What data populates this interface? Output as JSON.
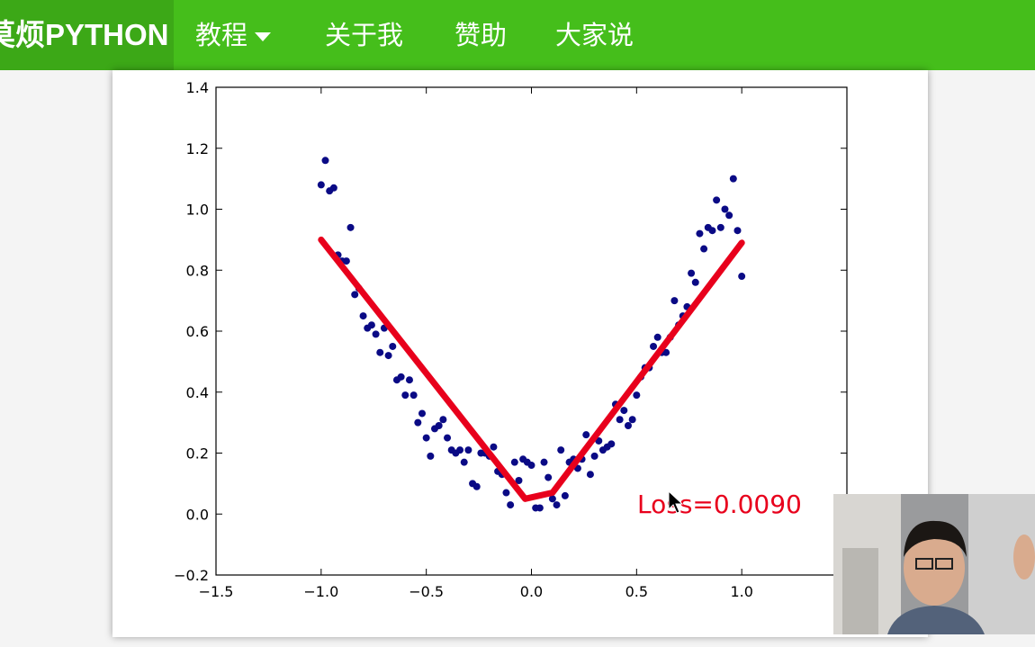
{
  "nav": {
    "brand": "莫烦PYTHON",
    "items": [
      {
        "label": "教程",
        "dropdown": true
      },
      {
        "label": "关于我",
        "dropdown": false
      },
      {
        "label": "赞助",
        "dropdown": false
      },
      {
        "label": "大家说",
        "dropdown": false
      }
    ]
  },
  "colors": {
    "nav_bg": "#45be1b",
    "brand_bg": "#3ca817",
    "points": "#0a0a85",
    "fit_line": "#e8001c",
    "loss_text": "#e8001c"
  },
  "icons": [
    "chevron-down-icon",
    "mouse-cursor-icon"
  ],
  "chart_data": {
    "type": "scatter",
    "title": "",
    "xlabel": "",
    "ylabel": "",
    "xlim": [
      -1.5,
      1.5
    ],
    "ylim": [
      -0.2,
      1.4
    ],
    "xticks": [
      "−1.5",
      "−1.0",
      "−0.5",
      "0.0",
      "0.5",
      "1.0"
    ],
    "yticks": [
      "−0.2",
      "0.0",
      "0.2",
      "0.4",
      "0.6",
      "0.8",
      "1.0",
      "1.2",
      "1.4"
    ],
    "annotation": "Loss=0.0090",
    "grid": false,
    "series": [
      {
        "kind": "scatter",
        "x": [
          -1.0,
          -0.98,
          -0.96,
          -0.94,
          -0.92,
          -0.9,
          -0.88,
          -0.86,
          -0.84,
          -0.82,
          -0.8,
          -0.78,
          -0.76,
          -0.74,
          -0.72,
          -0.7,
          -0.68,
          -0.66,
          -0.64,
          -0.62,
          -0.6,
          -0.58,
          -0.56,
          -0.54,
          -0.52,
          -0.5,
          -0.48,
          -0.46,
          -0.44,
          -0.42,
          -0.4,
          -0.38,
          -0.36,
          -0.34,
          -0.32,
          -0.3,
          -0.28,
          -0.26,
          -0.24,
          -0.22,
          -0.2,
          -0.18,
          -0.16,
          -0.14,
          -0.12,
          -0.1,
          -0.08,
          -0.06,
          -0.04,
          -0.02,
          0.0,
          0.02,
          0.04,
          0.06,
          0.08,
          0.1,
          0.12,
          0.14,
          0.16,
          0.18,
          0.2,
          0.22,
          0.24,
          0.26,
          0.28,
          0.3,
          0.32,
          0.34,
          0.36,
          0.38,
          0.4,
          0.42,
          0.44,
          0.46,
          0.48,
          0.5,
          0.52,
          0.54,
          0.56,
          0.58,
          0.6,
          0.62,
          0.64,
          0.66,
          0.68,
          0.7,
          0.72,
          0.74,
          0.76,
          0.78,
          0.8,
          0.82,
          0.84,
          0.86,
          0.88,
          0.9,
          0.92,
          0.94,
          0.96,
          0.98,
          1.0
        ],
        "y": [
          1.08,
          1.16,
          1.06,
          1.07,
          0.85,
          0.83,
          0.83,
          0.94,
          0.72,
          0.74,
          0.65,
          0.61,
          0.62,
          0.59,
          0.53,
          0.61,
          0.52,
          0.55,
          0.44,
          0.45,
          0.39,
          0.44,
          0.39,
          0.3,
          0.33,
          0.25,
          0.19,
          0.28,
          0.29,
          0.31,
          0.25,
          0.21,
          0.2,
          0.21,
          0.17,
          0.21,
          0.1,
          0.09,
          0.2,
          0.2,
          0.19,
          0.22,
          0.14,
          0.13,
          0.07,
          0.03,
          0.17,
          0.11,
          0.18,
          0.17,
          0.16,
          0.02,
          0.02,
          0.17,
          0.12,
          0.05,
          0.03,
          0.21,
          0.06,
          0.17,
          0.18,
          0.15,
          0.18,
          0.26,
          0.13,
          0.19,
          0.24,
          0.21,
          0.22,
          0.23,
          0.36,
          0.31,
          0.34,
          0.29,
          0.31,
          0.39,
          0.45,
          0.48,
          0.48,
          0.55,
          0.58,
          0.53,
          0.53,
          0.58,
          0.7,
          0.62,
          0.65,
          0.68,
          0.79,
          0.76,
          0.92,
          0.87,
          0.94,
          0.93,
          1.03,
          0.94,
          1.0,
          0.98,
          1.1,
          0.93,
          0.78
        ]
      },
      {
        "kind": "line",
        "x": [
          -1.0,
          -0.03,
          0.1,
          1.0
        ],
        "y": [
          0.9,
          0.05,
          0.07,
          0.89
        ]
      }
    ]
  }
}
